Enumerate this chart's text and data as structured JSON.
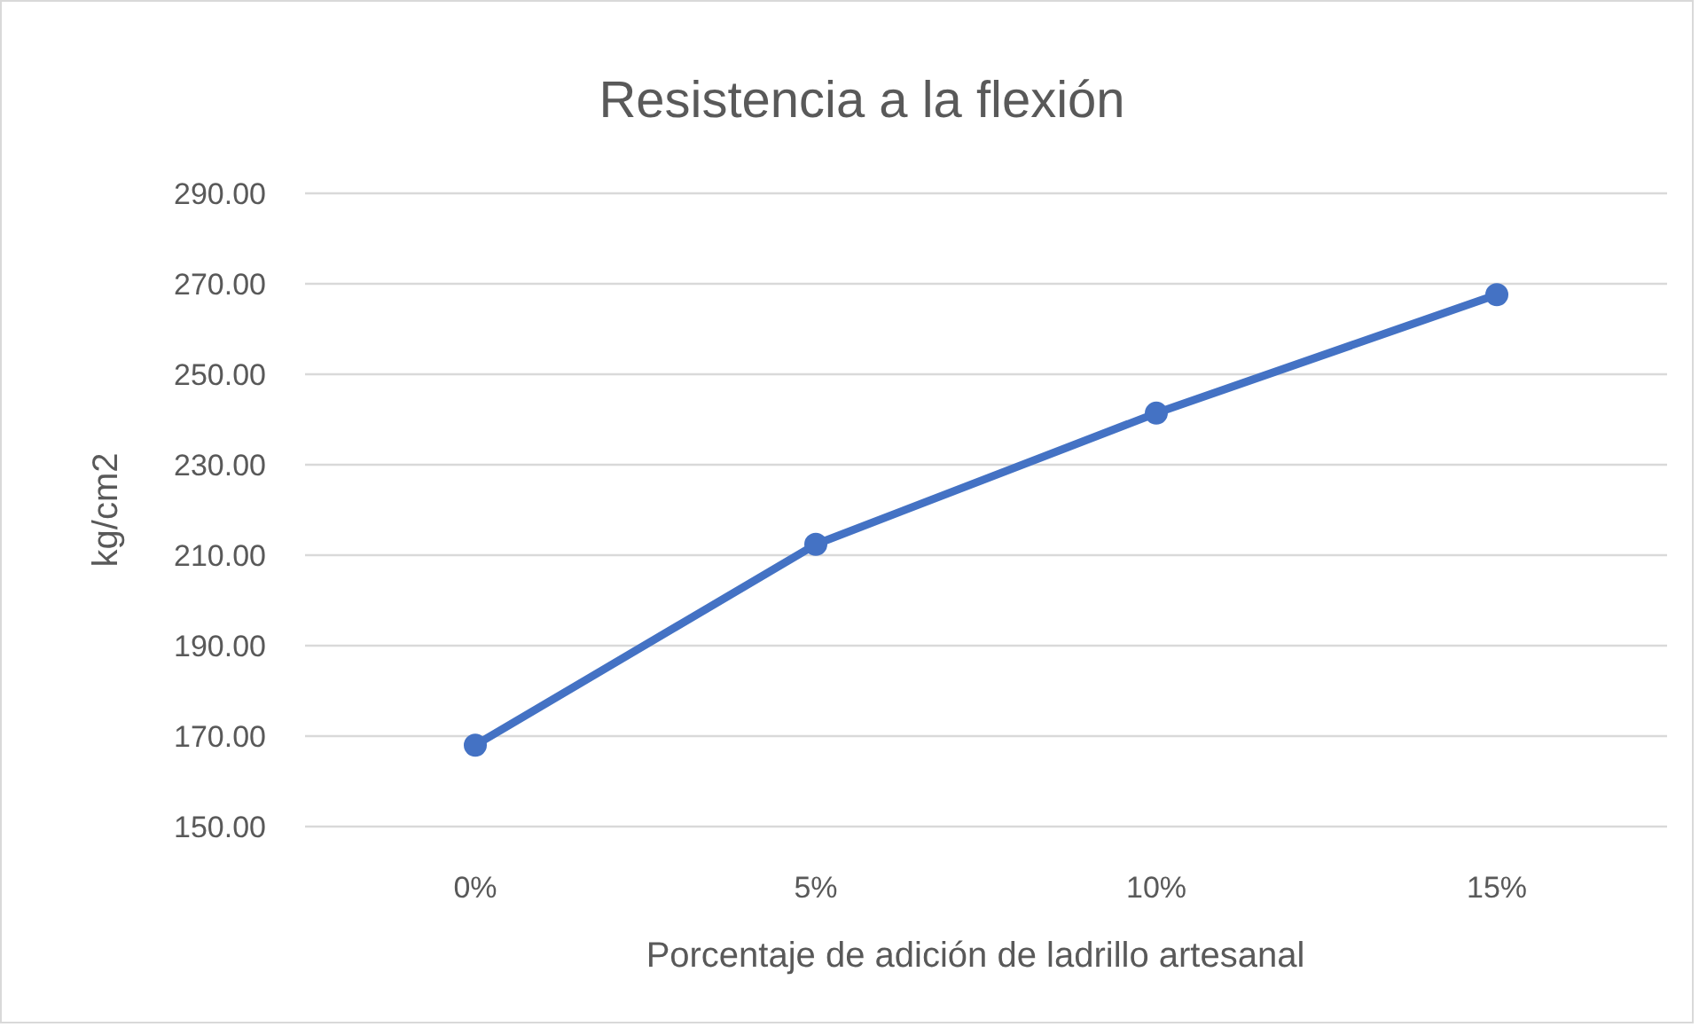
{
  "chart_data": {
    "type": "line",
    "title": "Resistencia a la flexión",
    "xlabel": "Porcentaje de adición de ladrillo artesanal",
    "ylabel": "kg/cm2",
    "categories": [
      "0%",
      "5%",
      "10%",
      "15%"
    ],
    "series": [
      {
        "color": "#4472c4",
        "values": [
          168,
          212.4,
          241.4,
          267.6
        ]
      }
    ],
    "ylim": [
      150,
      290
    ],
    "yticks": [
      {
        "value": 150,
        "label": "150.00"
      },
      {
        "value": 170,
        "label": "170.00"
      },
      {
        "value": 190,
        "label": "190.00"
      },
      {
        "value": 210,
        "label": "210.00"
      },
      {
        "value": 230,
        "label": "230.00"
      },
      {
        "value": 250,
        "label": "250.00"
      },
      {
        "value": 270,
        "label": "270.00"
      },
      {
        "value": 290,
        "label": "290.00"
      }
    ],
    "grid": "y",
    "marker": "circle",
    "line_style": "solid"
  }
}
